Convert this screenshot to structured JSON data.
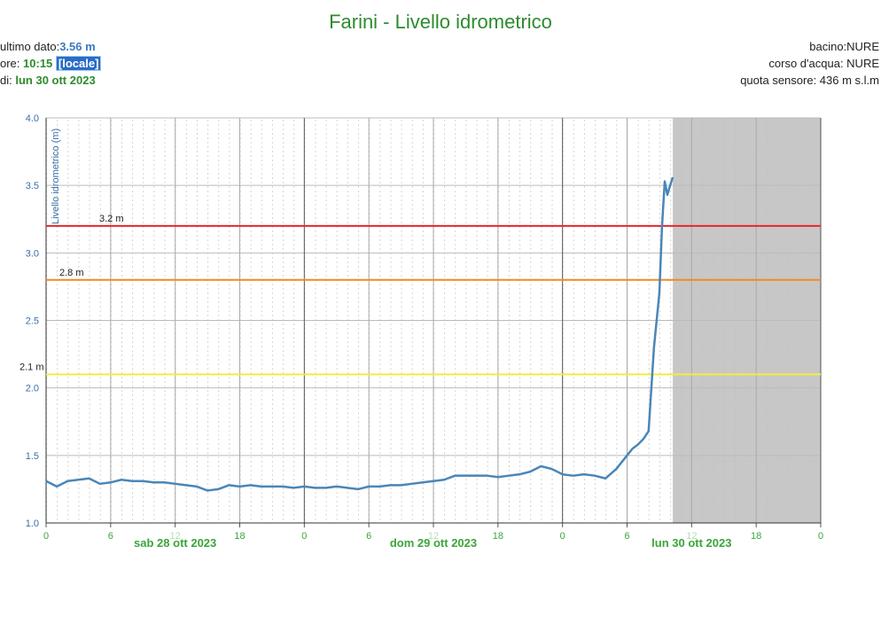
{
  "header": {
    "title": "Farini - Livello idrometrico",
    "last_label": "ultimo dato:",
    "last_value": "3.56 m",
    "time_label": "ore:",
    "time": "10:15",
    "locale": "[locale]",
    "date_label": "di:",
    "date": "lun 30 ott 2023",
    "basin": "bacino:NURE",
    "river": "corso d'acqua: NURE",
    "sensor": "quota sensore: 436 m s.l.m"
  },
  "chart_data": {
    "type": "line",
    "y_label": "Livello idrometrico (m)",
    "x": [
      0,
      1,
      2,
      3,
      4,
      5,
      6,
      7,
      8,
      9,
      10,
      11,
      12,
      13,
      14,
      15,
      16,
      17,
      18,
      19,
      20,
      21,
      22,
      23,
      24,
      25,
      26,
      27,
      28,
      29,
      30,
      31,
      32,
      33,
      34,
      35,
      36,
      37,
      38,
      39,
      40,
      41,
      42,
      43,
      44,
      45,
      46,
      47,
      48,
      49,
      50,
      51,
      52,
      53,
      54,
      54.5,
      55,
      55.5,
      56,
      56.5,
      57,
      57.25,
      57.5,
      57.75,
      58,
      58.25
    ],
    "series": [
      {
        "color": "#4a86b8",
        "values": [
          1.31,
          1.27,
          1.31,
          1.32,
          1.33,
          1.29,
          1.3,
          1.32,
          1.31,
          1.31,
          1.3,
          1.3,
          1.29,
          1.28,
          1.27,
          1.24,
          1.25,
          1.28,
          1.27,
          1.28,
          1.27,
          1.27,
          1.27,
          1.26,
          1.27,
          1.26,
          1.26,
          1.27,
          1.26,
          1.25,
          1.27,
          1.27,
          1.28,
          1.28,
          1.29,
          1.3,
          1.31,
          1.32,
          1.35,
          1.35,
          1.35,
          1.35,
          1.34,
          1.35,
          1.36,
          1.38,
          1.42,
          1.4,
          1.36,
          1.35,
          1.36,
          1.35,
          1.33,
          1.4,
          1.5,
          1.55,
          1.58,
          1.62,
          1.68,
          2.3,
          2.7,
          3.2,
          3.53,
          3.43,
          3.5,
          3.56
        ]
      }
    ],
    "xlim": [
      0,
      72
    ],
    "xticks": [
      0,
      6,
      12,
      18,
      {
        "value": 24,
        "label": "0"
      },
      {
        "value": 30,
        "label": "6"
      },
      {
        "value": 36,
        "label": "12"
      },
      {
        "value": 42,
        "label": "18"
      },
      {
        "value": 48,
        "label": "0"
      },
      {
        "value": 54,
        "label": "6"
      },
      {
        "value": 60,
        "label": "12"
      },
      {
        "value": 66,
        "label": "18"
      },
      {
        "value": 72,
        "label": "0"
      }
    ],
    "day_labels": [
      {
        "value": 12,
        "label": "sab 28 ott 2023"
      },
      {
        "value": 36,
        "label": "dom 29 ott 2023"
      },
      {
        "value": 60,
        "label": "lun 30 ott 2023"
      }
    ],
    "ylim": [
      1,
      4
    ],
    "yticks": [
      {
        "value": 1,
        "label": "1.0"
      },
      1.5,
      {
        "value": 2,
        "label": "2.0"
      },
      2.5,
      {
        "value": 3,
        "label": "3.0"
      },
      3.5,
      {
        "value": 4,
        "label": "4.0"
      }
    ],
    "thresholds": [
      {
        "value": 3.2,
        "label": "3.2 m",
        "color": "#e8262b"
      },
      {
        "value": 2.8,
        "label": "2.8 m",
        "color": "#f08a24"
      },
      {
        "value": 2.1,
        "label": "2.1 m",
        "color": "#f2ee3a"
      }
    ],
    "grid": true
  }
}
